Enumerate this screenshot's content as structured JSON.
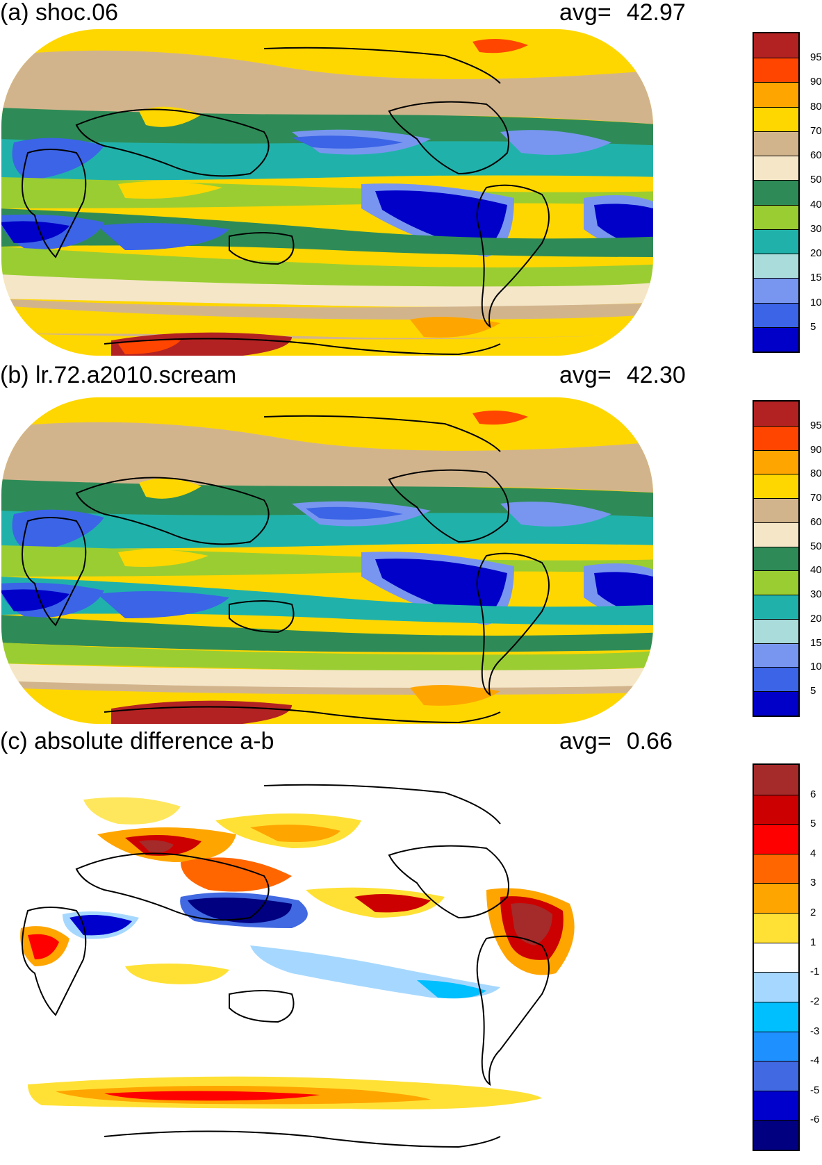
{
  "panels": [
    {
      "id": "a",
      "title": "(a) shoc.06",
      "avg_label": "avg=",
      "avg_value": "42.97",
      "colorbar": {
        "colors": [
          "#0000c8",
          "#3c64e6",
          "#7896f0",
          "#aadcdc",
          "#20b2aa",
          "#9acd32",
          "#2e8b57",
          "#f5e6c8",
          "#d2b48c",
          "#ffd700",
          "#ffa500",
          "#ff4500",
          "#b22222"
        ],
        "labels": [
          "5",
          "10",
          "15",
          "20",
          "30",
          "40",
          "50",
          "60",
          "70",
          "80",
          "90",
          "95"
        ]
      }
    },
    {
      "id": "b",
      "title": "(b) lr.72.a2010.scream",
      "avg_label": "avg=",
      "avg_value": "42.30",
      "colorbar": {
        "colors": [
          "#0000c8",
          "#3c64e6",
          "#7896f0",
          "#aadcdc",
          "#20b2aa",
          "#9acd32",
          "#2e8b57",
          "#f5e6c8",
          "#d2b48c",
          "#ffd700",
          "#ffa500",
          "#ff4500",
          "#b22222"
        ],
        "labels": [
          "5",
          "10",
          "15",
          "20",
          "30",
          "40",
          "50",
          "60",
          "70",
          "80",
          "90",
          "95"
        ]
      }
    },
    {
      "id": "c",
      "title": "(c) absolute difference a-b",
      "avg_label": "avg=",
      "avg_value": "0.66",
      "colorbar": {
        "colors": [
          "#000080",
          "#0000cd",
          "#4169e1",
          "#1e90ff",
          "#00bfff",
          "#a6d8ff",
          "#ffffff",
          "#ffe135",
          "#ffa500",
          "#ff6600",
          "#ff0000",
          "#cc0000",
          "#a52a2a"
        ],
        "labels": [
          "-6",
          "-5",
          "-4",
          "-3",
          "-2",
          "-1",
          "1",
          "2",
          "3",
          "4",
          "5",
          "6"
        ]
      }
    }
  ]
}
